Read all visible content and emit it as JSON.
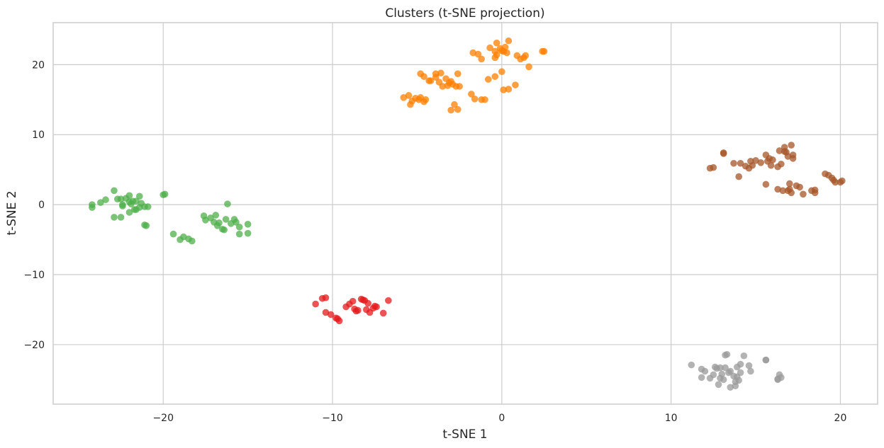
{
  "chart_data": {
    "type": "scatter",
    "title": "Clusters (t-SNE projection)",
    "xlabel": "t-SNE 1",
    "ylabel": "t-SNE 2",
    "xlim": [
      -26.5,
      22.2
    ],
    "ylim": [
      -28.5,
      26
    ],
    "xticks": [
      -20,
      -10,
      0,
      10,
      20
    ],
    "xtick_labels": [
      "−20",
      "−10",
      "0",
      "10",
      "20"
    ],
    "yticks": [
      -20,
      -10,
      0,
      10,
      20
    ],
    "ytick_labels": [
      "−20",
      "−10",
      "0",
      "10",
      "20"
    ],
    "grid": true,
    "legend": "none",
    "series": [
      {
        "color": "#ff7f00",
        "points": [
          [
            -5.8,
            15.3
          ],
          [
            -5.5,
            15.6
          ],
          [
            -5.4,
            14.3
          ],
          [
            -5.3,
            14.8
          ],
          [
            -5.1,
            15.2
          ],
          [
            -4.9,
            15.0
          ],
          [
            -4.8,
            15.3
          ],
          [
            -4.6,
            14.7
          ],
          [
            -4.5,
            15.0
          ],
          [
            -4.8,
            18.7
          ],
          [
            -4.6,
            18.3
          ],
          [
            -4.2,
            17.7
          ],
          [
            -3.9,
            18.7
          ],
          [
            -3.7,
            17.5
          ],
          [
            -3.5,
            16.9
          ],
          [
            -3.6,
            18.8
          ],
          [
            -3.3,
            18.0
          ],
          [
            -3.0,
            17.6
          ],
          [
            -2.9,
            17.2
          ],
          [
            -2.6,
            18.7
          ],
          [
            -2.7,
            16.9
          ],
          [
            -2.5,
            16.9
          ],
          [
            -3.1,
            17.4
          ],
          [
            -2.8,
            14.3
          ],
          [
            -3.0,
            13.5
          ],
          [
            -2.6,
            13.6
          ],
          [
            -1.8,
            15.8
          ],
          [
            -1.6,
            15.1
          ],
          [
            -1.2,
            15.0
          ],
          [
            -1.0,
            15.0
          ],
          [
            -0.8,
            17.9
          ],
          [
            -0.4,
            18.3
          ],
          [
            -1.7,
            21.7
          ],
          [
            -1.4,
            21.5
          ],
          [
            -1.2,
            20.8
          ],
          [
            -0.7,
            22.4
          ],
          [
            -0.4,
            21.9
          ],
          [
            -0.4,
            21.0
          ],
          [
            -0.3,
            23.1
          ],
          [
            -0.1,
            22.3
          ],
          [
            0.1,
            21.9
          ],
          [
            0.2,
            22.5
          ],
          [
            0.3,
            21.7
          ],
          [
            0.4,
            23.4
          ],
          [
            0.0,
            19.0
          ],
          [
            0.1,
            16.4
          ],
          [
            0.4,
            16.5
          ],
          [
            0.8,
            17.1
          ],
          [
            0.9,
            21.3
          ],
          [
            1.1,
            20.8
          ],
          [
            1.3,
            21.0
          ],
          [
            1.4,
            21.3
          ],
          [
            1.6,
            19.7
          ],
          [
            2.4,
            21.9
          ],
          [
            2.5,
            21.9
          ],
          [
            0.0,
            22.0
          ],
          [
            -0.3,
            21.4
          ],
          [
            -3.9,
            18.2
          ],
          [
            -4.3,
            17.7
          ],
          [
            -3.2,
            17.0
          ]
        ]
      },
      {
        "color": "#a65628",
        "points": [
          [
            12.3,
            5.2
          ],
          [
            12.5,
            5.3
          ],
          [
            13.1,
            7.4
          ],
          [
            13.1,
            7.3
          ],
          [
            13.7,
            5.9
          ],
          [
            14.0,
            4.0
          ],
          [
            14.1,
            5.9
          ],
          [
            14.4,
            5.5
          ],
          [
            14.6,
            5.2
          ],
          [
            14.7,
            6.2
          ],
          [
            14.8,
            5.6
          ],
          [
            15.0,
            6.3
          ],
          [
            15.3,
            6.0
          ],
          [
            15.6,
            7.1
          ],
          [
            15.6,
            2.9
          ],
          [
            15.7,
            6.2
          ],
          [
            15.8,
            6.6
          ],
          [
            15.9,
            5.6
          ],
          [
            16.0,
            6.4
          ],
          [
            16.3,
            5.4
          ],
          [
            16.3,
            2.2
          ],
          [
            16.5,
            5.8
          ],
          [
            16.6,
            2.0
          ],
          [
            16.7,
            8.2
          ],
          [
            16.8,
            7.5
          ],
          [
            16.9,
            6.9
          ],
          [
            16.9,
            2.0
          ],
          [
            16.7,
            7.6
          ],
          [
            17.0,
            3.0
          ],
          [
            17.1,
            1.7
          ],
          [
            17.2,
            7.1
          ],
          [
            17.2,
            6.6
          ],
          [
            17.1,
            8.5
          ],
          [
            17.4,
            2.7
          ],
          [
            17.6,
            2.5
          ],
          [
            17.8,
            1.5
          ],
          [
            18.3,
            2.0
          ],
          [
            18.5,
            2.1
          ],
          [
            18.5,
            1.7
          ],
          [
            19.1,
            4.4
          ],
          [
            19.3,
            4.2
          ],
          [
            19.5,
            3.8
          ],
          [
            19.6,
            3.5
          ],
          [
            19.7,
            3.2
          ],
          [
            20.0,
            3.2
          ],
          [
            20.1,
            3.4
          ],
          [
            17.0,
            2.2
          ],
          [
            16.4,
            7.7
          ]
        ]
      },
      {
        "color": "#4daf4a",
        "points": [
          [
            -24.2,
            0.0
          ],
          [
            -24.2,
            -0.4
          ],
          [
            -23.7,
            0.3
          ],
          [
            -23.4,
            0.7
          ],
          [
            -22.9,
            2.0
          ],
          [
            -22.7,
            0.8
          ],
          [
            -22.5,
            0.8
          ],
          [
            -22.4,
            -0.2
          ],
          [
            -22.2,
            0.9
          ],
          [
            -22.0,
            1.3
          ],
          [
            -21.8,
            0.5
          ],
          [
            -21.6,
            0.5
          ],
          [
            -21.4,
            1.2
          ],
          [
            -21.3,
            0.2
          ],
          [
            -21.6,
            -0.7
          ],
          [
            -21.4,
            -0.4
          ],
          [
            -21.1,
            -0.3
          ],
          [
            -20.9,
            -0.3
          ],
          [
            -21.1,
            -2.9
          ],
          [
            -21.0,
            -3.0
          ],
          [
            -22.4,
            0.0
          ],
          [
            -22.9,
            -1.8
          ],
          [
            -22.5,
            -1.8
          ],
          [
            -22.0,
            -1.1
          ],
          [
            -21.7,
            -0.7
          ],
          [
            -21.9,
            0.1
          ],
          [
            -22.0,
            0.4
          ],
          [
            -19.9,
            1.5
          ],
          [
            -20.0,
            1.4
          ],
          [
            -19.4,
            -4.2
          ],
          [
            -19.0,
            -5.0
          ],
          [
            -18.8,
            -4.6
          ],
          [
            -18.5,
            -4.9
          ],
          [
            -18.3,
            -5.2
          ],
          [
            -17.6,
            -1.6
          ],
          [
            -17.5,
            -2.2
          ],
          [
            -17.2,
            -1.9
          ],
          [
            -17.0,
            -2.5
          ],
          [
            -16.9,
            -1.5
          ],
          [
            -16.8,
            -3.0
          ],
          [
            -16.7,
            -2.6
          ],
          [
            -16.5,
            -3.5
          ],
          [
            -16.4,
            -3.6
          ],
          [
            -16.3,
            -2.1
          ],
          [
            -16.2,
            0.1
          ],
          [
            -16.0,
            -2.7
          ],
          [
            -15.8,
            -2.1
          ],
          [
            -15.7,
            -2.5
          ],
          [
            -15.5,
            -3.2
          ],
          [
            -15.5,
            -4.2
          ],
          [
            -15.0,
            -2.8
          ],
          [
            -15.0,
            -4.1
          ]
        ]
      },
      {
        "color": "#e41a1c",
        "points": [
          [
            -11.0,
            -14.2
          ],
          [
            -10.6,
            -13.4
          ],
          [
            -10.4,
            -13.3
          ],
          [
            -10.4,
            -15.4
          ],
          [
            -10.1,
            -15.7
          ],
          [
            -9.8,
            -16.2
          ],
          [
            -9.6,
            -16.6
          ],
          [
            -9.2,
            -14.6
          ],
          [
            -9.0,
            -14.2
          ],
          [
            -8.8,
            -13.8
          ],
          [
            -8.7,
            -14.9
          ],
          [
            -8.5,
            -15.1
          ],
          [
            -8.3,
            -13.5
          ],
          [
            -8.2,
            -13.6
          ],
          [
            -8.1,
            -13.7
          ],
          [
            -8.0,
            -15.0
          ],
          [
            -7.9,
            -14.1
          ],
          [
            -7.8,
            -15.4
          ],
          [
            -7.6,
            -14.8
          ],
          [
            -7.5,
            -14.5
          ],
          [
            -7.4,
            -14.6
          ],
          [
            -7.0,
            -15.5
          ],
          [
            -6.7,
            -13.7
          ],
          [
            -8.6,
            -15.2
          ],
          [
            -9.7,
            -16.3
          ]
        ]
      },
      {
        "color": "#999999",
        "points": [
          [
            11.2,
            -22.9
          ],
          [
            11.8,
            -23.5
          ],
          [
            11.8,
            -24.7
          ],
          [
            12.0,
            -23.8
          ],
          [
            12.3,
            -24.8
          ],
          [
            12.5,
            -24.3
          ],
          [
            12.6,
            -23.2
          ],
          [
            12.7,
            -23.4
          ],
          [
            12.8,
            -25.7
          ],
          [
            12.9,
            -24.8
          ],
          [
            12.9,
            -23.3
          ],
          [
            13.0,
            -24.2
          ],
          [
            13.1,
            -25.0
          ],
          [
            13.2,
            -23.3
          ],
          [
            13.2,
            -21.5
          ],
          [
            13.4,
            -24.0
          ],
          [
            13.5,
            -26.1
          ],
          [
            13.5,
            -23.8
          ],
          [
            13.7,
            -24.5
          ],
          [
            13.8,
            -25.9
          ],
          [
            13.9,
            -24.6
          ],
          [
            13.9,
            -23.2
          ],
          [
            14.0,
            -25.1
          ],
          [
            14.1,
            -24.0
          ],
          [
            14.1,
            -22.8
          ],
          [
            14.3,
            -21.6
          ],
          [
            14.6,
            -23.0
          ],
          [
            14.7,
            -23.8
          ],
          [
            15.6,
            -22.2
          ],
          [
            15.6,
            -22.2
          ],
          [
            16.3,
            -24.9
          ],
          [
            16.4,
            -24.3
          ],
          [
            16.5,
            -24.7
          ],
          [
            16.3,
            -25.0
          ],
          [
            13.3,
            -21.4
          ],
          [
            13.8,
            -25.3
          ]
        ]
      }
    ]
  }
}
